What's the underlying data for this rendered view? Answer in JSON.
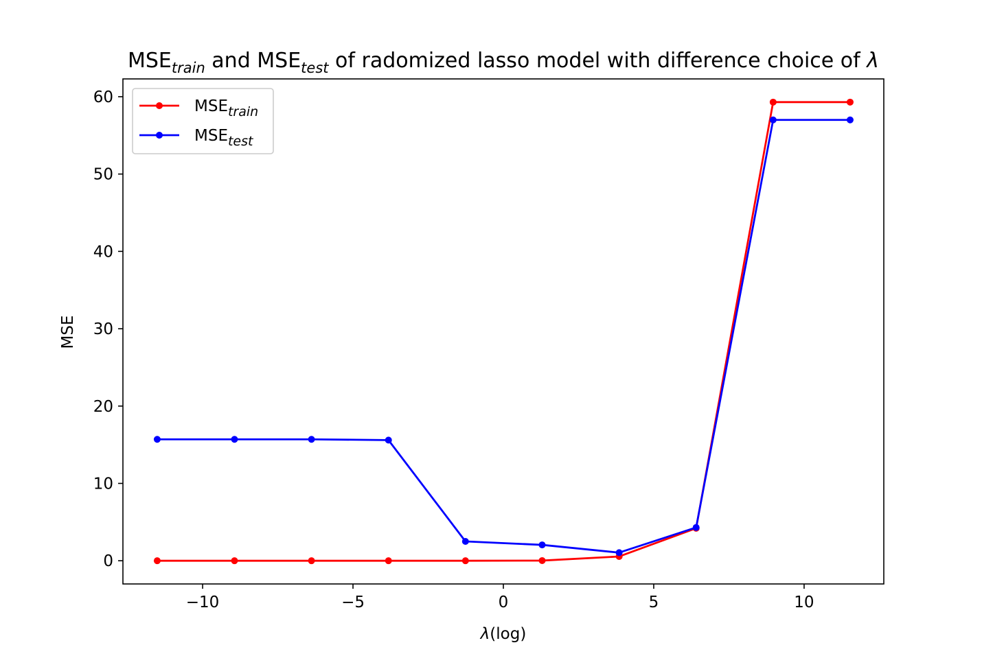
{
  "chart_data": {
    "type": "line",
    "title": {
      "part1_main": "MSE",
      "part1_sub": "train",
      "part2_main": " and MSE",
      "part2_sub": "test",
      "part3_main": " of radomized lasso model with difference choice of ",
      "part3_symbol": "λ"
    },
    "xlabel": {
      "symbol": "λ",
      "text": "(log)"
    },
    "ylabel": "MSE",
    "xlim": [
      -12.65,
      12.65
    ],
    "ylim": [
      -3.0,
      62.3
    ],
    "x_ticks": [
      -10,
      -5,
      0,
      5,
      10
    ],
    "x_tick_labels": [
      "−10",
      "−5",
      "0",
      "5",
      "10"
    ],
    "y_ticks": [
      0,
      10,
      20,
      30,
      40,
      50,
      60
    ],
    "y_tick_labels": [
      "0",
      "10",
      "20",
      "30",
      "40",
      "50",
      "60"
    ],
    "grid": false,
    "legend_position": "upper-left",
    "x": [
      -11.51,
      -8.94,
      -6.38,
      -3.82,
      -1.26,
      1.29,
      3.85,
      6.41,
      8.97,
      11.53
    ],
    "series": [
      {
        "name_main": "MSE",
        "name_sub": "train",
        "color": "#ff0000",
        "values": [
          0.0,
          0.0,
          0.0,
          0.0,
          0.0,
          0.02,
          0.55,
          4.2,
          59.3,
          59.3
        ]
      },
      {
        "name_main": "MSE",
        "name_sub": "test",
        "color": "#0000ff",
        "values": [
          15.7,
          15.7,
          15.7,
          15.6,
          2.5,
          2.05,
          1.05,
          4.3,
          57.0,
          57.0
        ]
      }
    ]
  }
}
